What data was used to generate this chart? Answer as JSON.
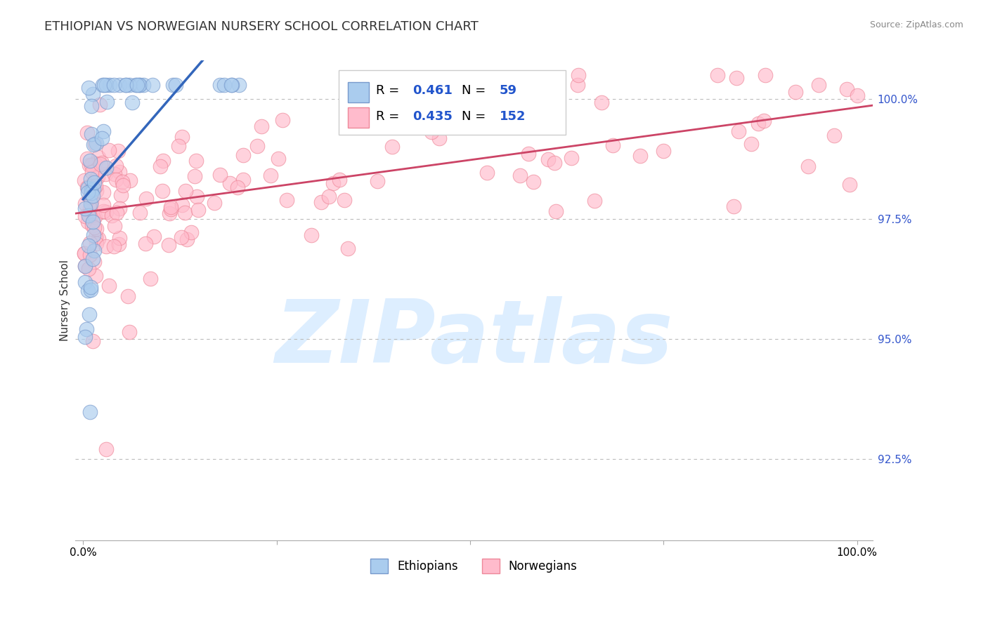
{
  "title": "ETHIOPIAN VS NORWEGIAN NURSERY SCHOOL CORRELATION CHART",
  "source_text": "Source: ZipAtlas.com",
  "ylabel": "Nursery School",
  "xlim": [
    -0.01,
    1.02
  ],
  "ylim": [
    0.908,
    1.008
  ],
  "yticks": [
    0.925,
    0.95,
    0.975,
    1.0
  ],
  "ytick_labels": [
    "92.5%",
    "95.0%",
    "97.5%",
    "100.0%"
  ],
  "xtick_vals": [
    0.0,
    0.25,
    0.5,
    0.75,
    1.0
  ],
  "xtick_labels": [
    "0.0%",
    "",
    "",
    "",
    "100.0%"
  ],
  "r_ethiopian": 0.461,
  "n_ethiopian": 59,
  "r_norwegian": 0.435,
  "n_norwegian": 152,
  "eth_face_color": "#aaccee",
  "eth_edge_color": "#7799cc",
  "eth_line_color": "#3366bb",
  "nor_face_color": "#ffbbcc",
  "nor_edge_color": "#ee8899",
  "nor_line_color": "#cc4466",
  "bg_color": "#ffffff",
  "watermark": "ZIPatlas",
  "watermark_color": "#ddeeff",
  "title_fontsize": 13,
  "tick_fontsize": 11,
  "legend_val_color": "#2255cc",
  "right_tick_color": "#3355cc",
  "legend_text_color": "#000000"
}
